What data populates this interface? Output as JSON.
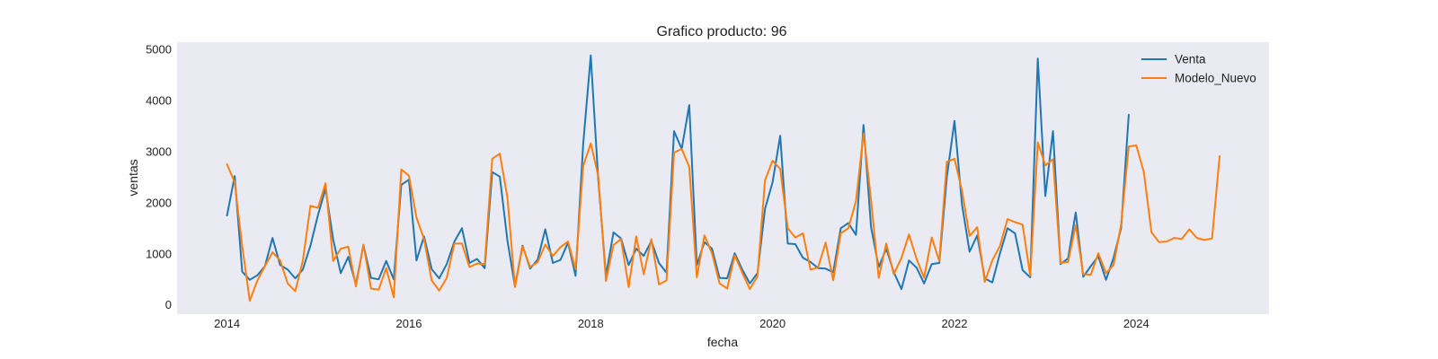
{
  "chart_data": {
    "type": "line",
    "title": "Grafico producto: 96",
    "xlabel": "fecha",
    "ylabel": "ventas",
    "x_ticks": [
      2014,
      2016,
      2018,
      2020,
      2022,
      2024
    ],
    "y_ticks": [
      0,
      1000,
      2000,
      3000,
      4000,
      5000
    ],
    "xlim": [
      2013.45,
      2025.46
    ],
    "ylim": [
      -180,
      5140
    ],
    "grid": false,
    "background": "#eaeaf2",
    "legend_position": "top-right",
    "x_start": "2014-01",
    "series": [
      {
        "name": "Venta",
        "color": "#1f77b4",
        "values": [
          1750,
          2520,
          650,
          490,
          580,
          760,
          1310,
          780,
          690,
          520,
          690,
          1160,
          1760,
          2270,
          1280,
          620,
          940,
          400,
          1170,
          530,
          500,
          860,
          500,
          2350,
          2450,
          870,
          1340,
          700,
          520,
          800,
          1240,
          1500,
          820,
          900,
          720,
          2600,
          2510,
          1260,
          360,
          1160,
          710,
          890,
          1480,
          820,
          880,
          1220,
          570,
          3150,
          4880,
          2440,
          570,
          1420,
          1300,
          780,
          1100,
          960,
          1250,
          820,
          630,
          3400,
          3050,
          3910,
          780,
          1230,
          1100,
          530,
          520,
          1010,
          690,
          420,
          620,
          1880,
          2400,
          3310,
          1200,
          1190,
          920,
          840,
          720,
          710,
          640,
          1500,
          1600,
          1370,
          3520,
          1520,
          740,
          1100,
          640,
          310,
          870,
          730,
          420,
          800,
          820,
          2500,
          3600,
          1960,
          1040,
          1360,
          520,
          440,
          1000,
          1500,
          1400,
          680,
          540,
          4820,
          2130,
          3400,
          800,
          910,
          1810,
          550,
          760,
          950,
          490,
          920,
          1500,
          3720
        ]
      },
      {
        "name": "Modelo_Nuevo",
        "color": "#ff7f0e",
        "values": [
          2750,
          2400,
          1150,
          80,
          480,
          760,
          1030,
          870,
          420,
          270,
          860,
          1940,
          1900,
          2380,
          860,
          1100,
          1140,
          360,
          1180,
          320,
          300,
          720,
          150,
          2650,
          2530,
          1710,
          1290,
          480,
          280,
          530,
          1200,
          1200,
          740,
          810,
          800,
          2860,
          2960,
          2100,
          350,
          1140,
          740,
          840,
          1180,
          960,
          1130,
          1240,
          700,
          2720,
          3160,
          2520,
          470,
          1170,
          1290,
          350,
          1340,
          600,
          1290,
          400,
          480,
          2980,
          3050,
          2700,
          540,
          1360,
          1010,
          420,
          320,
          970,
          630,
          310,
          560,
          2440,
          2820,
          2660,
          1500,
          1320,
          1400,
          690,
          730,
          1220,
          480,
          1400,
          1500,
          2030,
          3350,
          2050,
          530,
          1200,
          600,
          920,
          1380,
          900,
          530,
          1320,
          860,
          2800,
          2860,
          2230,
          1350,
          1520,
          450,
          870,
          1150,
          1680,
          1620,
          1570,
          570,
          3180,
          2730,
          2850,
          820,
          840,
          1560,
          600,
          590,
          1010,
          620,
          780,
          1570,
          3100,
          3120,
          2600,
          1420,
          1230,
          1240,
          1310,
          1290,
          1480,
          1310,
          1270,
          1300,
          2910
        ]
      }
    ]
  }
}
